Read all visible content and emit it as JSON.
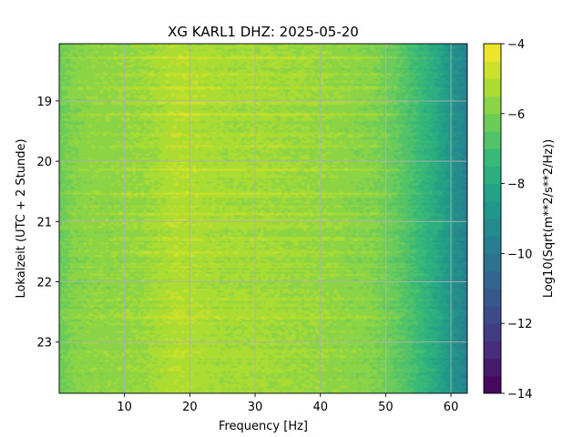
{
  "chart_data": {
    "type": "heatmap",
    "title": "XG KARL1  DHZ: 2025-05-20",
    "xlabel": "Frequency [Hz]",
    "ylabel": "Lokalzeit (UTC + 2 Stunde)",
    "colorbar_label": "Log10(Sqrt(m**2/s**2/Hz))",
    "colormap": "viridis",
    "x_range": [
      0,
      62.5
    ],
    "y_range": [
      18.05,
      23.85
    ],
    "x_ticks": [
      10,
      20,
      30,
      40,
      50,
      60
    ],
    "x_tick_labels": [
      "10",
      "20",
      "30",
      "40",
      "50",
      "60"
    ],
    "y_ticks": [
      19,
      20,
      21,
      22,
      23
    ],
    "y_tick_labels": [
      "19",
      "20",
      "21",
      "22",
      "23"
    ],
    "color_range": [
      -14,
      -4
    ],
    "colorbar_ticks": [
      -4,
      -6,
      -8,
      -10,
      -12,
      -14
    ],
    "colorbar_tick_labels": [
      "−4",
      "−6",
      "−8",
      "−10",
      "−12",
      "−14"
    ],
    "colorbar_levels": 20,
    "grid": true,
    "spectrum_profile": {
      "frequency_hz": [
        0,
        2,
        5,
        8,
        12,
        15,
        18,
        20,
        25,
        30,
        35,
        40,
        45,
        48,
        50,
        52,
        55,
        58,
        60,
        62.5
      ],
      "log10_amplitude": [
        -6.3,
        -5.9,
        -5.7,
        -5.7,
        -5.6,
        -5.4,
        -5.1,
        -5.2,
        -5.4,
        -5.4,
        -5.5,
        -5.6,
        -5.8,
        -5.9,
        -6.2,
        -6.5,
        -7.2,
        -8.0,
        -8.8,
        -9.6
      ]
    },
    "bright_bands_local_hour": [
      18.28,
      18.57,
      18.78,
      19.02,
      19.22,
      19.57,
      19.75,
      20.14,
      20.55,
      20.87,
      21.28,
      21.52,
      22.27,
      22.6
    ]
  }
}
